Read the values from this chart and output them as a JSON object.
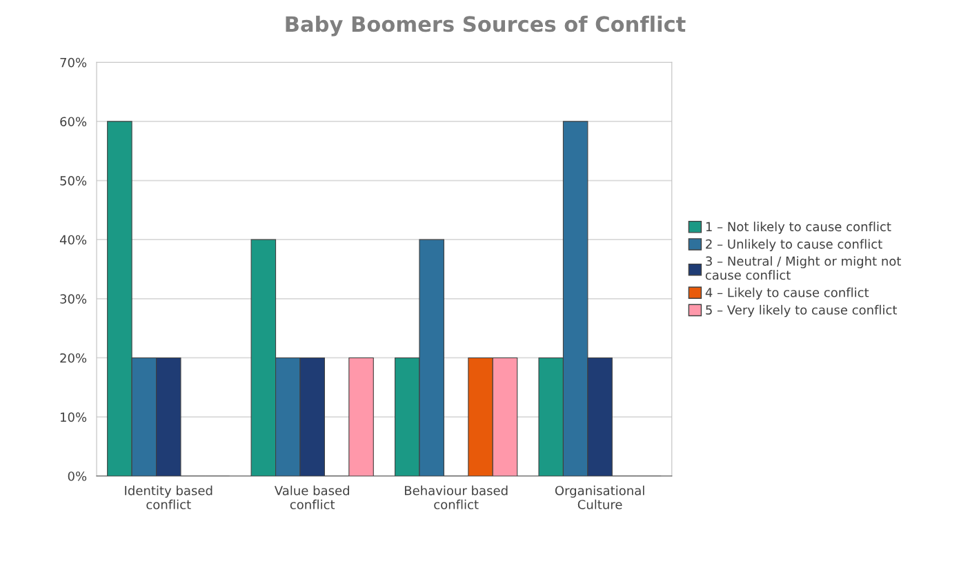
{
  "chart_data": {
    "type": "bar",
    "title": "Baby Boomers Sources of Conflict",
    "categories": [
      "Identity based\nconflict",
      "Value based\nconflict",
      "Behaviour based\nconflict",
      "Organisational\nCulture"
    ],
    "series": [
      {
        "name": "1 – Not likely to cause conflict",
        "color": "#1b9985",
        "values": [
          60,
          40,
          20,
          20
        ]
      },
      {
        "name": "2 – Unlikely to cause conflict",
        "color": "#2e719c",
        "values": [
          20,
          20,
          40,
          60
        ]
      },
      {
        "name": "3 – Neutral / Might or might not\ncause conflict",
        "color": "#1f3c74",
        "values": [
          20,
          20,
          0,
          20
        ]
      },
      {
        "name": "4 – Likely to cause conflict",
        "color": "#e85a0a",
        "values": [
          0,
          0,
          20,
          0
        ]
      },
      {
        "name": "5 – Very likely to cause conflict",
        "color": "#ff98aa",
        "values": [
          0,
          20,
          20,
          0
        ]
      }
    ],
    "ylim": [
      0,
      70
    ],
    "yticks": [
      {
        "value": 0,
        "label": "0%"
      },
      {
        "value": 10,
        "label": "10%"
      },
      {
        "value": 20,
        "label": "20%"
      },
      {
        "value": 30,
        "label": "30%"
      },
      {
        "value": 40,
        "label": "40%"
      },
      {
        "value": 50,
        "label": "50%"
      },
      {
        "value": 60,
        "label": "60%"
      },
      {
        "value": 70,
        "label": "70%"
      }
    ],
    "grid": "y",
    "legend": "right"
  }
}
